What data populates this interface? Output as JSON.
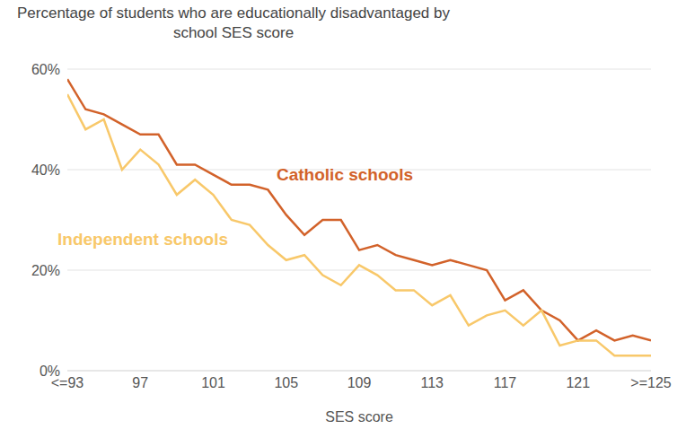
{
  "chart_data": {
    "type": "line",
    "title": "Percentage of students who are educationally disadvantaged by school SES score",
    "x_label": "SES score",
    "x": [
      93,
      94,
      95,
      96,
      97,
      98,
      99,
      100,
      101,
      102,
      103,
      104,
      105,
      106,
      107,
      108,
      109,
      110,
      111,
      112,
      113,
      114,
      115,
      116,
      117,
      118,
      119,
      120,
      121,
      122,
      123,
      124,
      125
    ],
    "series": [
      {
        "name": "Catholic schools",
        "color": "#d2622a",
        "values": [
          58,
          52,
          51,
          49,
          47,
          47,
          41,
          41,
          39,
          37,
          37,
          36,
          31,
          27,
          30,
          30,
          24,
          25,
          23,
          22,
          21,
          22,
          21,
          20,
          14,
          16,
          12,
          10,
          6,
          8,
          6,
          7,
          6
        ]
      },
      {
        "name": "Independent schools",
        "color": "#f8c86a",
        "values": [
          55,
          48,
          50,
          40,
          44,
          41,
          35,
          38,
          35,
          30,
          29,
          25,
          22,
          23,
          19,
          17,
          21,
          19,
          16,
          16,
          13,
          15,
          9,
          11,
          12,
          9,
          12,
          5,
          6,
          6,
          3,
          3,
          3
        ]
      }
    ],
    "xlim": [
      93,
      125
    ],
    "xticks": [
      {
        "value": 93,
        "label": "<=93"
      },
      97,
      101,
      105,
      109,
      113,
      117,
      121,
      {
        "value": 125,
        "label": ">=125"
      }
    ],
    "ylim": [
      0,
      60
    ],
    "yticks": [
      {
        "value": 0,
        "label": "0%"
      },
      {
        "value": 20,
        "label": "20%"
      },
      {
        "value": 40,
        "label": "40%"
      },
      {
        "value": 60,
        "label": "60%"
      }
    ],
    "grid": true
  }
}
